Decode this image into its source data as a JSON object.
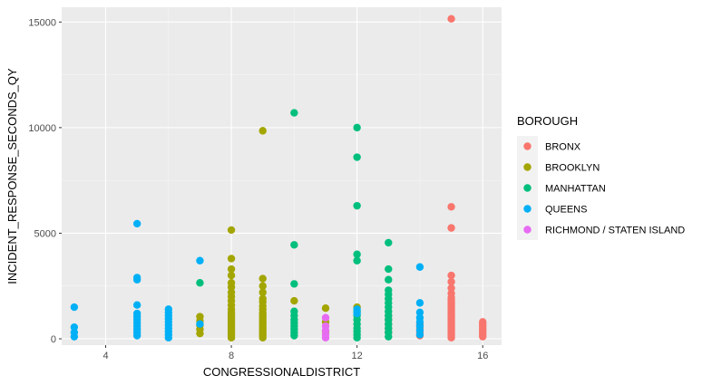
{
  "chart_data": {
    "type": "scatter",
    "xlabel": "CONGRESSIONALDISTRICT",
    "ylabel": "INCIDENT_RESPONSE_SECONDS_QY",
    "xlim": [
      2.6,
      16.6
    ],
    "ylim": [
      -300,
      15700
    ],
    "x_ticks": [
      4,
      8,
      12,
      16
    ],
    "y_ticks": [
      0,
      5000,
      10000,
      15000
    ],
    "grid": true,
    "background": "#ebebeb",
    "legend": {
      "title": "BOROUGH",
      "position": "right"
    },
    "series": [
      {
        "name": "BRONX",
        "color": "#f8766d",
        "points": [
          [
            13,
            300
          ],
          [
            13,
            500
          ],
          [
            13,
            700
          ],
          [
            13,
            900
          ],
          [
            13,
            1100
          ],
          [
            14,
            150
          ],
          [
            14,
            300
          ],
          [
            14,
            500
          ],
          [
            14,
            700
          ],
          [
            15,
            50
          ],
          [
            15,
            150
          ],
          [
            15,
            250
          ],
          [
            15,
            350
          ],
          [
            15,
            450
          ],
          [
            15,
            550
          ],
          [
            15,
            650
          ],
          [
            15,
            750
          ],
          [
            15,
            850
          ],
          [
            15,
            950
          ],
          [
            15,
            1050
          ],
          [
            15,
            1150
          ],
          [
            15,
            1250
          ],
          [
            15,
            1350
          ],
          [
            15,
            1450
          ],
          [
            15,
            1550
          ],
          [
            15,
            1650
          ],
          [
            15,
            1750
          ],
          [
            15,
            1850
          ],
          [
            15,
            1950
          ],
          [
            15,
            2150
          ],
          [
            15,
            2400
          ],
          [
            15,
            2700
          ],
          [
            15,
            3000
          ],
          [
            15,
            5250
          ],
          [
            15,
            6250
          ],
          [
            15,
            15150
          ],
          [
            16,
            100
          ],
          [
            16,
            200
          ],
          [
            16,
            300
          ],
          [
            16,
            400
          ],
          [
            16,
            500
          ],
          [
            16,
            600
          ],
          [
            16,
            700
          ],
          [
            16,
            800
          ]
        ]
      },
      {
        "name": "BROOKLYN",
        "color": "#a3a500",
        "points": [
          [
            7,
            250
          ],
          [
            7,
            450
          ],
          [
            7,
            650
          ],
          [
            7,
            850
          ],
          [
            7,
            1050
          ],
          [
            8,
            50
          ],
          [
            8,
            150
          ],
          [
            8,
            250
          ],
          [
            8,
            350
          ],
          [
            8,
            450
          ],
          [
            8,
            550
          ],
          [
            8,
            650
          ],
          [
            8,
            750
          ],
          [
            8,
            850
          ],
          [
            8,
            950
          ],
          [
            8,
            1050
          ],
          [
            8,
            1150
          ],
          [
            8,
            1250
          ],
          [
            8,
            1400
          ],
          [
            8,
            1600
          ],
          [
            8,
            1800
          ],
          [
            8,
            2000
          ],
          [
            8,
            2200
          ],
          [
            8,
            2450
          ],
          [
            8,
            2650
          ],
          [
            8,
            3000
          ],
          [
            8,
            3300
          ],
          [
            8,
            3800
          ],
          [
            8,
            5150
          ],
          [
            9,
            50
          ],
          [
            9,
            150
          ],
          [
            9,
            250
          ],
          [
            9,
            350
          ],
          [
            9,
            450
          ],
          [
            9,
            550
          ],
          [
            9,
            650
          ],
          [
            9,
            750
          ],
          [
            9,
            850
          ],
          [
            9,
            950
          ],
          [
            9,
            1050
          ],
          [
            9,
            1150
          ],
          [
            9,
            1250
          ],
          [
            9,
            1400
          ],
          [
            9,
            1550
          ],
          [
            9,
            1750
          ],
          [
            9,
            1900
          ],
          [
            9,
            2200
          ],
          [
            9,
            2500
          ],
          [
            9,
            2850
          ],
          [
            9,
            9850
          ],
          [
            10,
            1800
          ],
          [
            11,
            350
          ],
          [
            11,
            800
          ],
          [
            11,
            1450
          ],
          [
            12,
            1500
          ]
        ]
      },
      {
        "name": "MANHATTAN",
        "color": "#00bf7d",
        "points": [
          [
            7,
            2650
          ],
          [
            10,
            150
          ],
          [
            10,
            300
          ],
          [
            10,
            450
          ],
          [
            10,
            600
          ],
          [
            10,
            750
          ],
          [
            10,
            900
          ],
          [
            10,
            1100
          ],
          [
            10,
            1300
          ],
          [
            10,
            2600
          ],
          [
            10,
            4450
          ],
          [
            10,
            10700
          ],
          [
            12,
            50
          ],
          [
            12,
            200
          ],
          [
            12,
            350
          ],
          [
            12,
            500
          ],
          [
            12,
            700
          ],
          [
            12,
            900
          ],
          [
            12,
            1100
          ],
          [
            12,
            1300
          ],
          [
            12,
            3700
          ],
          [
            12,
            4000
          ],
          [
            12,
            6300
          ],
          [
            12,
            8600
          ],
          [
            12,
            10000
          ],
          [
            13,
            100
          ],
          [
            13,
            300
          ],
          [
            13,
            500
          ],
          [
            13,
            700
          ],
          [
            13,
            900
          ],
          [
            13,
            1100
          ],
          [
            13,
            1300
          ],
          [
            13,
            1500
          ],
          [
            13,
            1700
          ],
          [
            13,
            1900
          ],
          [
            13,
            2100
          ],
          [
            13,
            2300
          ],
          [
            13,
            2800
          ],
          [
            13,
            3300
          ],
          [
            13,
            4550
          ]
        ]
      },
      {
        "name": "QUEENS",
        "color": "#00b0f6",
        "points": [
          [
            3,
            100
          ],
          [
            3,
            300
          ],
          [
            3,
            550
          ],
          [
            3,
            1500
          ],
          [
            5,
            150
          ],
          [
            5,
            300
          ],
          [
            5,
            450
          ],
          [
            5,
            600
          ],
          [
            5,
            750
          ],
          [
            5,
            900
          ],
          [
            5,
            1050
          ],
          [
            5,
            1200
          ],
          [
            5,
            1600
          ],
          [
            5,
            2800
          ],
          [
            5,
            2900
          ],
          [
            5,
            5450
          ],
          [
            6,
            50
          ],
          [
            6,
            200
          ],
          [
            6,
            350
          ],
          [
            6,
            500
          ],
          [
            6,
            650
          ],
          [
            6,
            800
          ],
          [
            6,
            950
          ],
          [
            6,
            1100
          ],
          [
            6,
            1250
          ],
          [
            6,
            1400
          ],
          [
            7,
            700
          ],
          [
            7,
            3700
          ],
          [
            12,
            1200
          ],
          [
            12,
            1400
          ],
          [
            14,
            200
          ],
          [
            14,
            400
          ],
          [
            14,
            600
          ],
          [
            14,
            800
          ],
          [
            14,
            1000
          ],
          [
            14,
            1250
          ],
          [
            14,
            1700
          ],
          [
            14,
            3400
          ]
        ]
      },
      {
        "name": "RICHMOND / STATEN ISLAND",
        "color": "#e76bf3",
        "points": [
          [
            11,
            50
          ],
          [
            11,
            200
          ],
          [
            11,
            400
          ],
          [
            11,
            600
          ],
          [
            11,
            1000
          ]
        ]
      }
    ]
  }
}
